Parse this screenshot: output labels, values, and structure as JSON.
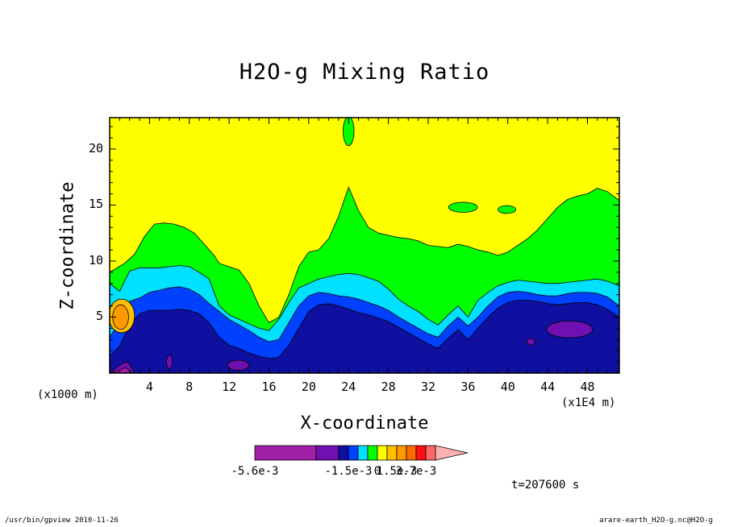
{
  "title": "H2O-g Mixing Ratio",
  "x_unit_label": "(x1000 m)",
  "x_scale_label": "(x1E4 m)",
  "time_label": "t=207600 s",
  "footer_left": "/usr/bin/gpview   2010-11-26",
  "footer_right": "arare-earth_H2O-g.nc@H2O-g",
  "colorbar": {
    "colors": [
      "#a020a8",
      "#7010b0",
      "#1010a0",
      "#0040ff",
      "#00e0ff",
      "#00ff00",
      "#ffff00",
      "#ffc000",
      "#ff9a00",
      "#ff6a00",
      "#ff1010",
      "#ff6868",
      "#ffb0b0"
    ],
    "labels": [
      "-5.6e-3",
      "-1.5e-3",
      "0",
      "1.5e-3",
      "3.7e-3"
    ]
  },
  "chart_data": {
    "type": "heatmap",
    "title": "H2O-g Mixing Ratio",
    "xlabel": "X-coordinate",
    "ylabel": "Z-coordinate",
    "x_ticks": [
      4,
      8,
      12,
      16,
      20,
      24,
      28,
      32,
      36,
      40,
      44,
      48
    ],
    "y_ticks": [
      5,
      10,
      15,
      20
    ],
    "xlim": [
      0,
      51.2
    ],
    "ylim": [
      0,
      22.8
    ],
    "bands": [
      {
        "name": "green",
        "color": "#00ff00",
        "top": [
          [
            0,
            9
          ],
          [
            1.5,
            9.8
          ],
          [
            2.5,
            10.6
          ],
          [
            3.5,
            12.2
          ],
          [
            4.5,
            13.3
          ],
          [
            5.5,
            13.4
          ],
          [
            6.5,
            13.3
          ],
          [
            7.5,
            13
          ],
          [
            8.5,
            12.5
          ],
          [
            9.5,
            11.5
          ],
          [
            10.5,
            10.5
          ],
          [
            11,
            9.8
          ],
          [
            12,
            9.5
          ],
          [
            13,
            9.2
          ],
          [
            14,
            8
          ],
          [
            15,
            6
          ],
          [
            16,
            4.5
          ],
          [
            17,
            5
          ],
          [
            18,
            7
          ],
          [
            19,
            9.5
          ],
          [
            20,
            10.8
          ],
          [
            21,
            11
          ],
          [
            22,
            12
          ],
          [
            23,
            14
          ],
          [
            24,
            16.6
          ],
          [
            25,
            14.5
          ],
          [
            26,
            13
          ],
          [
            27,
            12.5
          ],
          [
            28,
            12.3
          ],
          [
            29,
            12.1
          ],
          [
            30,
            12
          ],
          [
            31,
            11.8
          ],
          [
            32,
            11.4
          ],
          [
            33,
            11.3
          ],
          [
            34,
            11.2
          ],
          [
            35,
            11.5
          ],
          [
            36,
            11.3
          ],
          [
            37,
            11
          ],
          [
            38,
            10.8
          ],
          [
            39,
            10.5
          ],
          [
            40,
            10.8
          ],
          [
            41,
            11.4
          ],
          [
            42,
            12
          ],
          [
            43,
            12.8
          ],
          [
            44,
            13.8
          ],
          [
            45,
            14.8
          ],
          [
            46,
            15.5
          ],
          [
            47,
            15.8
          ],
          [
            48,
            16
          ],
          [
            49,
            16.5
          ],
          [
            50,
            16.2
          ],
          [
            51.2,
            15.4
          ]
        ]
      },
      {
        "name": "cyan",
        "color": "#00e0ff",
        "top": [
          [
            0,
            8
          ],
          [
            1,
            7.3
          ],
          [
            2,
            9.1
          ],
          [
            3,
            9.4
          ],
          [
            4,
            9.4
          ],
          [
            5,
            9.4
          ],
          [
            6,
            9.5
          ],
          [
            7,
            9.6
          ],
          [
            8,
            9.5
          ],
          [
            9,
            9
          ],
          [
            10,
            8.4
          ],
          [
            11,
            6
          ],
          [
            12,
            5.2
          ],
          [
            13,
            4.8
          ],
          [
            14,
            4.4
          ],
          [
            15,
            4
          ],
          [
            16,
            3.8
          ],
          [
            17,
            4.8
          ],
          [
            18,
            6.3
          ],
          [
            19,
            7.6
          ],
          [
            20,
            8
          ],
          [
            21,
            8.4
          ],
          [
            22,
            8.6
          ],
          [
            23,
            8.8
          ],
          [
            24,
            8.9
          ],
          [
            25,
            8.8
          ],
          [
            26,
            8.5
          ],
          [
            27,
            8.2
          ],
          [
            28,
            7.5
          ],
          [
            29,
            6.6
          ],
          [
            30,
            6
          ],
          [
            31,
            5.5
          ],
          [
            32,
            4.8
          ],
          [
            33,
            4.3
          ],
          [
            34,
            5.2
          ],
          [
            35,
            6
          ],
          [
            36,
            5
          ],
          [
            37,
            6.5
          ],
          [
            38,
            7.2
          ],
          [
            39,
            7.8
          ],
          [
            40,
            8.1
          ],
          [
            41,
            8.3
          ],
          [
            42,
            8.2
          ],
          [
            43,
            8.1
          ],
          [
            44,
            8
          ],
          [
            45,
            8
          ],
          [
            46,
            8.1
          ],
          [
            47,
            8.2
          ],
          [
            48,
            8.3
          ],
          [
            49,
            8.4
          ],
          [
            50,
            8.2
          ],
          [
            51.2,
            7.8
          ]
        ]
      },
      {
        "name": "blue",
        "color": "#0040ff",
        "top": [
          [
            0,
            3.2
          ],
          [
            1,
            4.6
          ],
          [
            2,
            6.4
          ],
          [
            3,
            6.7
          ],
          [
            4,
            7.2
          ],
          [
            5,
            7.4
          ],
          [
            6,
            7.6
          ],
          [
            7,
            7.7
          ],
          [
            8,
            7.5
          ],
          [
            9,
            7
          ],
          [
            10,
            6.2
          ],
          [
            11,
            5.5
          ],
          [
            12,
            4.8
          ],
          [
            13,
            4.3
          ],
          [
            14,
            3.8
          ],
          [
            15,
            3.2
          ],
          [
            16,
            2.8
          ],
          [
            17,
            3
          ],
          [
            18,
            4.5
          ],
          [
            19,
            6
          ],
          [
            20,
            6.9
          ],
          [
            21,
            7.2
          ],
          [
            22,
            7.1
          ],
          [
            23,
            6.9
          ],
          [
            24,
            6.8
          ],
          [
            25,
            6.6
          ],
          [
            26,
            6.3
          ],
          [
            27,
            6
          ],
          [
            28,
            5.6
          ],
          [
            29,
            5
          ],
          [
            30,
            4.5
          ],
          [
            31,
            4
          ],
          [
            32,
            3.5
          ],
          [
            33,
            3.2
          ],
          [
            34,
            4.2
          ],
          [
            35,
            5
          ],
          [
            36,
            4.2
          ],
          [
            37,
            5
          ],
          [
            38,
            6
          ],
          [
            39,
            6.8
          ],
          [
            40,
            7.2
          ],
          [
            41,
            7.3
          ],
          [
            42,
            7.2
          ],
          [
            43,
            7
          ],
          [
            44,
            6.9
          ],
          [
            45,
            6.9
          ],
          [
            46,
            7.1
          ],
          [
            47,
            7.2
          ],
          [
            48,
            7.2
          ],
          [
            49,
            7.1
          ],
          [
            50,
            6.8
          ],
          [
            51.2,
            6
          ]
        ]
      },
      {
        "name": "navy",
        "color": "#1010a0",
        "top": [
          [
            0,
            1.5
          ],
          [
            1,
            2.4
          ],
          [
            2,
            4.3
          ],
          [
            3,
            5.3
          ],
          [
            4,
            5.6
          ],
          [
            5,
            5.6
          ],
          [
            6,
            5.6
          ],
          [
            7,
            5.7
          ],
          [
            8,
            5.6
          ],
          [
            9,
            5.3
          ],
          [
            10,
            4.5
          ],
          [
            11,
            3.2
          ],
          [
            12,
            2.5
          ],
          [
            13,
            2.2
          ],
          [
            14,
            1.8
          ],
          [
            15,
            1.5
          ],
          [
            16,
            1.3
          ],
          [
            17,
            1.4
          ],
          [
            18,
            2.5
          ],
          [
            19,
            4
          ],
          [
            20,
            5.5
          ],
          [
            21,
            6.1
          ],
          [
            22,
            6.2
          ],
          [
            23,
            6
          ],
          [
            24,
            5.7
          ],
          [
            25,
            5.4
          ],
          [
            26,
            5.2
          ],
          [
            27,
            4.9
          ],
          [
            28,
            4.6
          ],
          [
            29,
            4.1
          ],
          [
            30,
            3.6
          ],
          [
            31,
            3.1
          ],
          [
            32,
            2.6
          ],
          [
            33,
            2.2
          ],
          [
            34,
            3.1
          ],
          [
            35,
            3.9
          ],
          [
            36,
            3
          ],
          [
            37,
            4
          ],
          [
            38,
            5
          ],
          [
            39,
            5.8
          ],
          [
            40,
            6.3
          ],
          [
            41,
            6.5
          ],
          [
            42,
            6.5
          ],
          [
            43,
            6.4
          ],
          [
            44,
            6.2
          ],
          [
            45,
            6.1
          ],
          [
            46,
            6.2
          ],
          [
            47,
            6.3
          ],
          [
            48,
            6.3
          ],
          [
            49,
            6.1
          ],
          [
            50,
            5.7
          ],
          [
            51.2,
            5
          ]
        ]
      },
      {
        "name": "purple",
        "color": "#7010b0",
        "top": [
          [
            0,
            0
          ],
          [
            0.8,
            0.6
          ],
          [
            1.4,
            0.9
          ],
          [
            1.8,
            1
          ],
          [
            2.2,
            0.5
          ],
          [
            2.5,
            0
          ]
        ]
      },
      {
        "name": "magenta",
        "color": "#a020a8",
        "top": [
          [
            0,
            0
          ],
          [
            1,
            0.25
          ],
          [
            1.6,
            0.5
          ],
          [
            2,
            0.2
          ],
          [
            2.3,
            0
          ]
        ]
      }
    ],
    "cells": [
      {
        "name": "upper-green-patch",
        "color": "#00ff00",
        "cx": 24,
        "cy": 21.6,
        "rx": 0.55,
        "ry": 1.3
      },
      {
        "name": "green-blob-35",
        "color": "#00ff00",
        "cx": 35.5,
        "cy": 14.8,
        "rx": 1.45,
        "ry": 0.45
      },
      {
        "name": "green-blob-40",
        "color": "#00ff00",
        "cx": 39.9,
        "cy": 14.6,
        "rx": 0.9,
        "ry": 0.35
      },
      {
        "name": "orange-cell-outer",
        "color": "#ffc000",
        "cx": 1.2,
        "cy": 5.1,
        "rx": 1.3,
        "ry": 1.5
      },
      {
        "name": "orange-cell-inner",
        "color": "#ff9a00",
        "cx": 1.1,
        "cy": 5.0,
        "rx": 0.8,
        "ry": 1.1
      },
      {
        "name": "purple-core-east",
        "color": "#7010b0",
        "cx": 46.2,
        "cy": 3.9,
        "rx": 2.3,
        "ry": 0.75
      },
      {
        "name": "purple-dot-east",
        "color": "#7010b0",
        "cx": 42.3,
        "cy": 2.8,
        "rx": 0.4,
        "ry": 0.3
      },
      {
        "name": "purple-patch-14",
        "color": "#7010b0",
        "cx": 12.9,
        "cy": 0.7,
        "rx": 1.1,
        "ry": 0.45
      },
      {
        "name": "purple-patch-6",
        "color": "#7010b0",
        "cx": 6.0,
        "cy": 1.0,
        "rx": 0.3,
        "ry": 0.6
      }
    ]
  }
}
